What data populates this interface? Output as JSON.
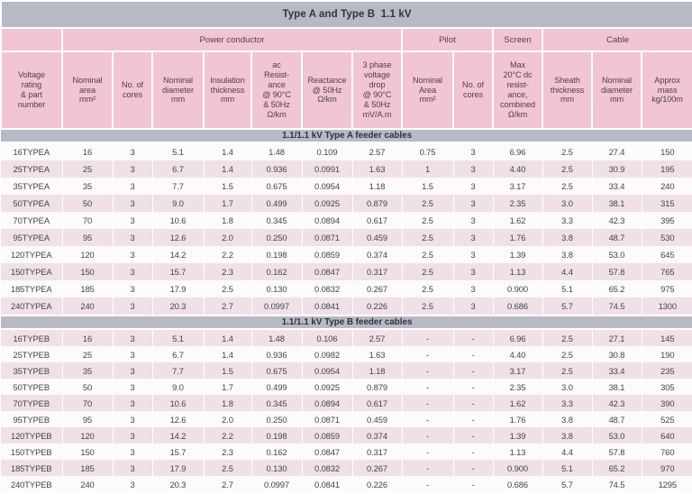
{
  "title": "Type A and Type B  1.1 kV",
  "colors": {
    "bar_background": "#b7b9c5",
    "header_background": "#f1c5d2",
    "shaded_row_background": "#efe1e7",
    "plain_row_background": "#fcfafb",
    "header_text": "#533f4b",
    "data_text": "#46424b",
    "title_text": "#34333f"
  },
  "groups": [
    {
      "label": "",
      "span": 1
    },
    {
      "label": "Power conductor",
      "span": 7
    },
    {
      "label": "Pilot",
      "span": 2
    },
    {
      "label": "Screen",
      "span": 1
    },
    {
      "label": "Cable",
      "span": 3
    }
  ],
  "columns": [
    {
      "id": "voltage-rating-part-number",
      "label": "Voltage\nrating\n& part\nnumber"
    },
    {
      "id": "nominal-area",
      "label": "Nominal\narea\nmm²"
    },
    {
      "id": "no-of-cores",
      "label": "No. of\ncores"
    },
    {
      "id": "nominal-diameter",
      "label": "Nominal\ndiameter\nmm"
    },
    {
      "id": "insulation-thickness",
      "label": "Insulation\nthickness\nmm"
    },
    {
      "id": "ac-resistance",
      "label": "ac\nResist-\nance\n@ 90°C\n& 50Hz\nΩ/km"
    },
    {
      "id": "reactance",
      "label": "Reactance\n@ 50Hz\nΩ/km"
    },
    {
      "id": "voltage-drop",
      "label": "3 phase\nvoltage\ndrop\n@ 90°C\n& 50Hz\nmV/A.m"
    },
    {
      "id": "pilot-nominal-area",
      "label": "Nominal\nArea\nmm²"
    },
    {
      "id": "pilot-no-of-cores",
      "label": "No. of\ncores"
    },
    {
      "id": "screen-max-dc-resistance",
      "label": "Max\n20°C dc\nresist-\nance,\ncombined\nΩ/km"
    },
    {
      "id": "sheath-thickness",
      "label": "Sheath\nthickness\nmm"
    },
    {
      "id": "cable-nominal-diameter",
      "label": "Nominal\ndiameter\nmm"
    },
    {
      "id": "approx-mass",
      "label": "Approx\nmass\nkg/100m"
    }
  ],
  "sections": [
    {
      "header": "1.1/1.1 kV Type A feeder cables",
      "first_row_shaded": false,
      "rows": [
        [
          "16TYPEA",
          "16",
          "3",
          "5.1",
          "1.4",
          "1.48",
          "0.109",
          "2.57",
          "0.75",
          "3",
          "6.96",
          "2.5",
          "27.4",
          "150"
        ],
        [
          "25TYPEA",
          "25",
          "3",
          "6.7",
          "1.4",
          "0.936",
          "0.0991",
          "1.63",
          "1",
          "3",
          "4.40",
          "2.5",
          "30.9",
          "195"
        ],
        [
          "35TYPEA",
          "35",
          "3",
          "7.7",
          "1.5",
          "0.675",
          "0.0954",
          "1.18",
          "1.5",
          "3",
          "3.17",
          "2.5",
          "33.4",
          "240"
        ],
        [
          "50TYPEA",
          "50",
          "3",
          "9.0",
          "1.7",
          "0.499",
          "0.0925",
          "0.879",
          "2.5",
          "3",
          "2.35",
          "3.0",
          "38.1",
          "315"
        ],
        [
          "70TYPEA",
          "70",
          "3",
          "10.6",
          "1.8",
          "0.345",
          "0.0894",
          "0.617",
          "2.5",
          "3",
          "1.62",
          "3.3",
          "42.3",
          "395"
        ],
        [
          "95TYPEA",
          "95",
          "3",
          "12.6",
          "2.0",
          "0.250",
          "0.0871",
          "0.459",
          "2.5",
          "3",
          "1.76",
          "3.8",
          "48.7",
          "530"
        ],
        [
          "120TYPEA",
          "120",
          "3",
          "14.2",
          "2.2",
          "0.198",
          "0.0859",
          "0.374",
          "2.5",
          "3",
          "1.39",
          "3.8",
          "53.0",
          "645"
        ],
        [
          "150TYPEA",
          "150",
          "3",
          "15.7",
          "2.3",
          "0.162",
          "0.0847",
          "0.317",
          "2.5",
          "3",
          "1.13",
          "4.4",
          "57.8",
          "765"
        ],
        [
          "185TYPEA",
          "185",
          "3",
          "17.9",
          "2.5",
          "0.130",
          "0.0832",
          "0.267",
          "2.5",
          "3",
          "0.900",
          "5.1",
          "65.2",
          "975"
        ],
        [
          "240TYPEA",
          "240",
          "3",
          "20.3",
          "2.7",
          "0.0997",
          "0.0841",
          "0.226",
          "2.5",
          "3",
          "0.686",
          "5.7",
          "74.5",
          "1300"
        ]
      ]
    },
    {
      "header": "1.1/1.1 kV Type B feeder cables",
      "first_row_shaded": true,
      "rows": [
        [
          "16TYPEB",
          "16",
          "3",
          "5.1",
          "1.4",
          "1.48",
          "0.106",
          "2.57",
          "-",
          "-",
          "6.96",
          "2.5",
          "27.1",
          "145"
        ],
        [
          "25TYPEB",
          "25",
          "3",
          "6.7",
          "1.4",
          "0.936",
          "0.0982",
          "1.63",
          "-",
          "-",
          "4.40",
          "2.5",
          "30.8",
          "190"
        ],
        [
          "35TYPEB",
          "35",
          "3",
          "7.7",
          "1.5",
          "0.675",
          "0.0954",
          "1.18",
          "-",
          "-",
          "3.17",
          "2.5",
          "33.4",
          "235"
        ],
        [
          "50TYPEB",
          "50",
          "3",
          "9.0",
          "1.7",
          "0.499",
          "0.0925",
          "0.879",
          "-",
          "-",
          "2.35",
          "3.0",
          "38.1",
          "305"
        ],
        [
          "70TYPEB",
          "70",
          "3",
          "10.6",
          "1.8",
          "0.345",
          "0.0894",
          "0.617",
          "-",
          "-",
          "1.62",
          "3.3",
          "42.3",
          "390"
        ],
        [
          "95TYPEB",
          "95",
          "3",
          "12.6",
          "2.0",
          "0.250",
          "0.0871",
          "0.459",
          "-",
          "-",
          "1.76",
          "3.8",
          "48.7",
          "525"
        ],
        [
          "120TYPEB",
          "120",
          "3",
          "14.2",
          "2.2",
          "0.198",
          "0.0859",
          "0.374",
          "-",
          "-",
          "1.39",
          "3.8",
          "53.0",
          "640"
        ],
        [
          "150TYPEB",
          "150",
          "3",
          "15.7",
          "2.3",
          "0.162",
          "0.0847",
          "0.317",
          "-",
          "-",
          "1.13",
          "4.4",
          "57.8",
          "760"
        ],
        [
          "185TYPEB",
          "185",
          "3",
          "17.9",
          "2.5",
          "0.130",
          "0.0832",
          "0.267",
          "-",
          "-",
          "0.900",
          "5.1",
          "65.2",
          "970"
        ],
        [
          "240TYPEB",
          "240",
          "3",
          "20.3",
          "2.7",
          "0.0997",
          "0.0841",
          "0.226",
          "-",
          "-",
          "0.686",
          "5.7",
          "74.5",
          "1295"
        ]
      ]
    }
  ]
}
